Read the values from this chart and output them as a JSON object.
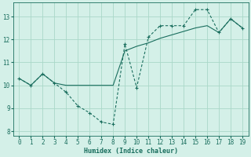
{
  "xlabel": "Humidex (Indice chaleur)",
  "line_solid_x": [
    0,
    1,
    2,
    3,
    4,
    5,
    6,
    7,
    8,
    9,
    10,
    11,
    12,
    13,
    14,
    15,
    16,
    17,
    18,
    19
  ],
  "line_solid_y": [
    10.3,
    10.0,
    10.5,
    10.1,
    10.0,
    10.0,
    10.0,
    10.0,
    10.0,
    11.5,
    11.7,
    11.85,
    12.05,
    12.2,
    12.35,
    12.5,
    12.6,
    12.3,
    12.9,
    12.5
  ],
  "line_dash_x": [
    0,
    1,
    2,
    3,
    4,
    5,
    6,
    7,
    8,
    9,
    10,
    11,
    12,
    13,
    14,
    15,
    16,
    17,
    18,
    19
  ],
  "line_dash_y": [
    10.3,
    10.0,
    10.5,
    10.1,
    9.7,
    9.1,
    8.8,
    8.4,
    8.3,
    11.8,
    9.9,
    12.1,
    12.6,
    12.6,
    12.6,
    13.3,
    13.3,
    12.3,
    12.9,
    12.5
  ],
  "line_color": "#1a6e5e",
  "bg_color": "#d4f0e8",
  "grid_color": "#aad8c8",
  "xlim": [
    -0.5,
    19.5
  ],
  "ylim": [
    7.8,
    13.6
  ],
  "yticks": [
    8,
    9,
    10,
    11,
    12,
    13
  ],
  "xticks": [
    0,
    1,
    2,
    3,
    4,
    5,
    6,
    7,
    8,
    9,
    10,
    11,
    12,
    13,
    14,
    15,
    16,
    17,
    18,
    19
  ],
  "tick_fontsize": 5.5,
  "xlabel_fontsize": 6.0
}
